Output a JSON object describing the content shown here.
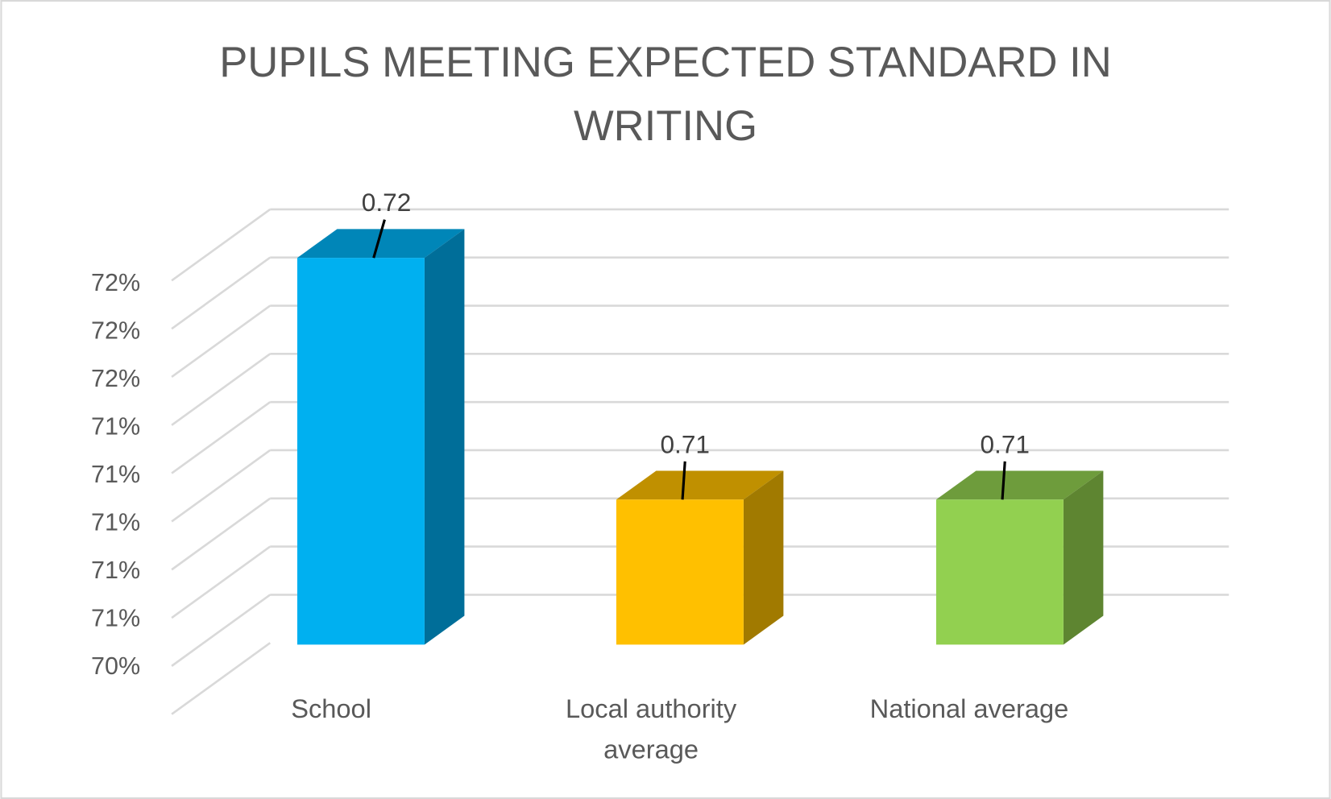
{
  "chart_data": {
    "type": "bar",
    "style": "3d-column",
    "title_lines": [
      "PUPILS MEETING EXPECTED STANDARD IN",
      "WRITING"
    ],
    "categories": [
      [
        "School"
      ],
      [
        "Local authority",
        "average"
      ],
      [
        "National average"
      ]
    ],
    "values": [
      0.72,
      0.71,
      0.71
    ],
    "data_labels": [
      "0.72",
      "0.71",
      "0.71"
    ],
    "ylim": [
      0.704,
      0.72
    ],
    "y_tick_values": [
      0.704,
      0.706,
      0.708,
      0.71,
      0.712,
      0.714,
      0.716,
      0.718,
      0.72
    ],
    "y_tick_labels": [
      "70%",
      "71%",
      "71%",
      "71%",
      "71%",
      "71%",
      "72%",
      "72%",
      "72%"
    ],
    "grid": true,
    "legend": "none",
    "colors": [
      {
        "front": "#00B0F0",
        "top": "#0086B8",
        "side": "#006E99"
      },
      {
        "front": "#FFC000",
        "top": "#C09000",
        "side": "#A17A00"
      },
      {
        "front": "#92D050",
        "top": "#6E9C3C",
        "side": "#5E8531"
      }
    ]
  }
}
